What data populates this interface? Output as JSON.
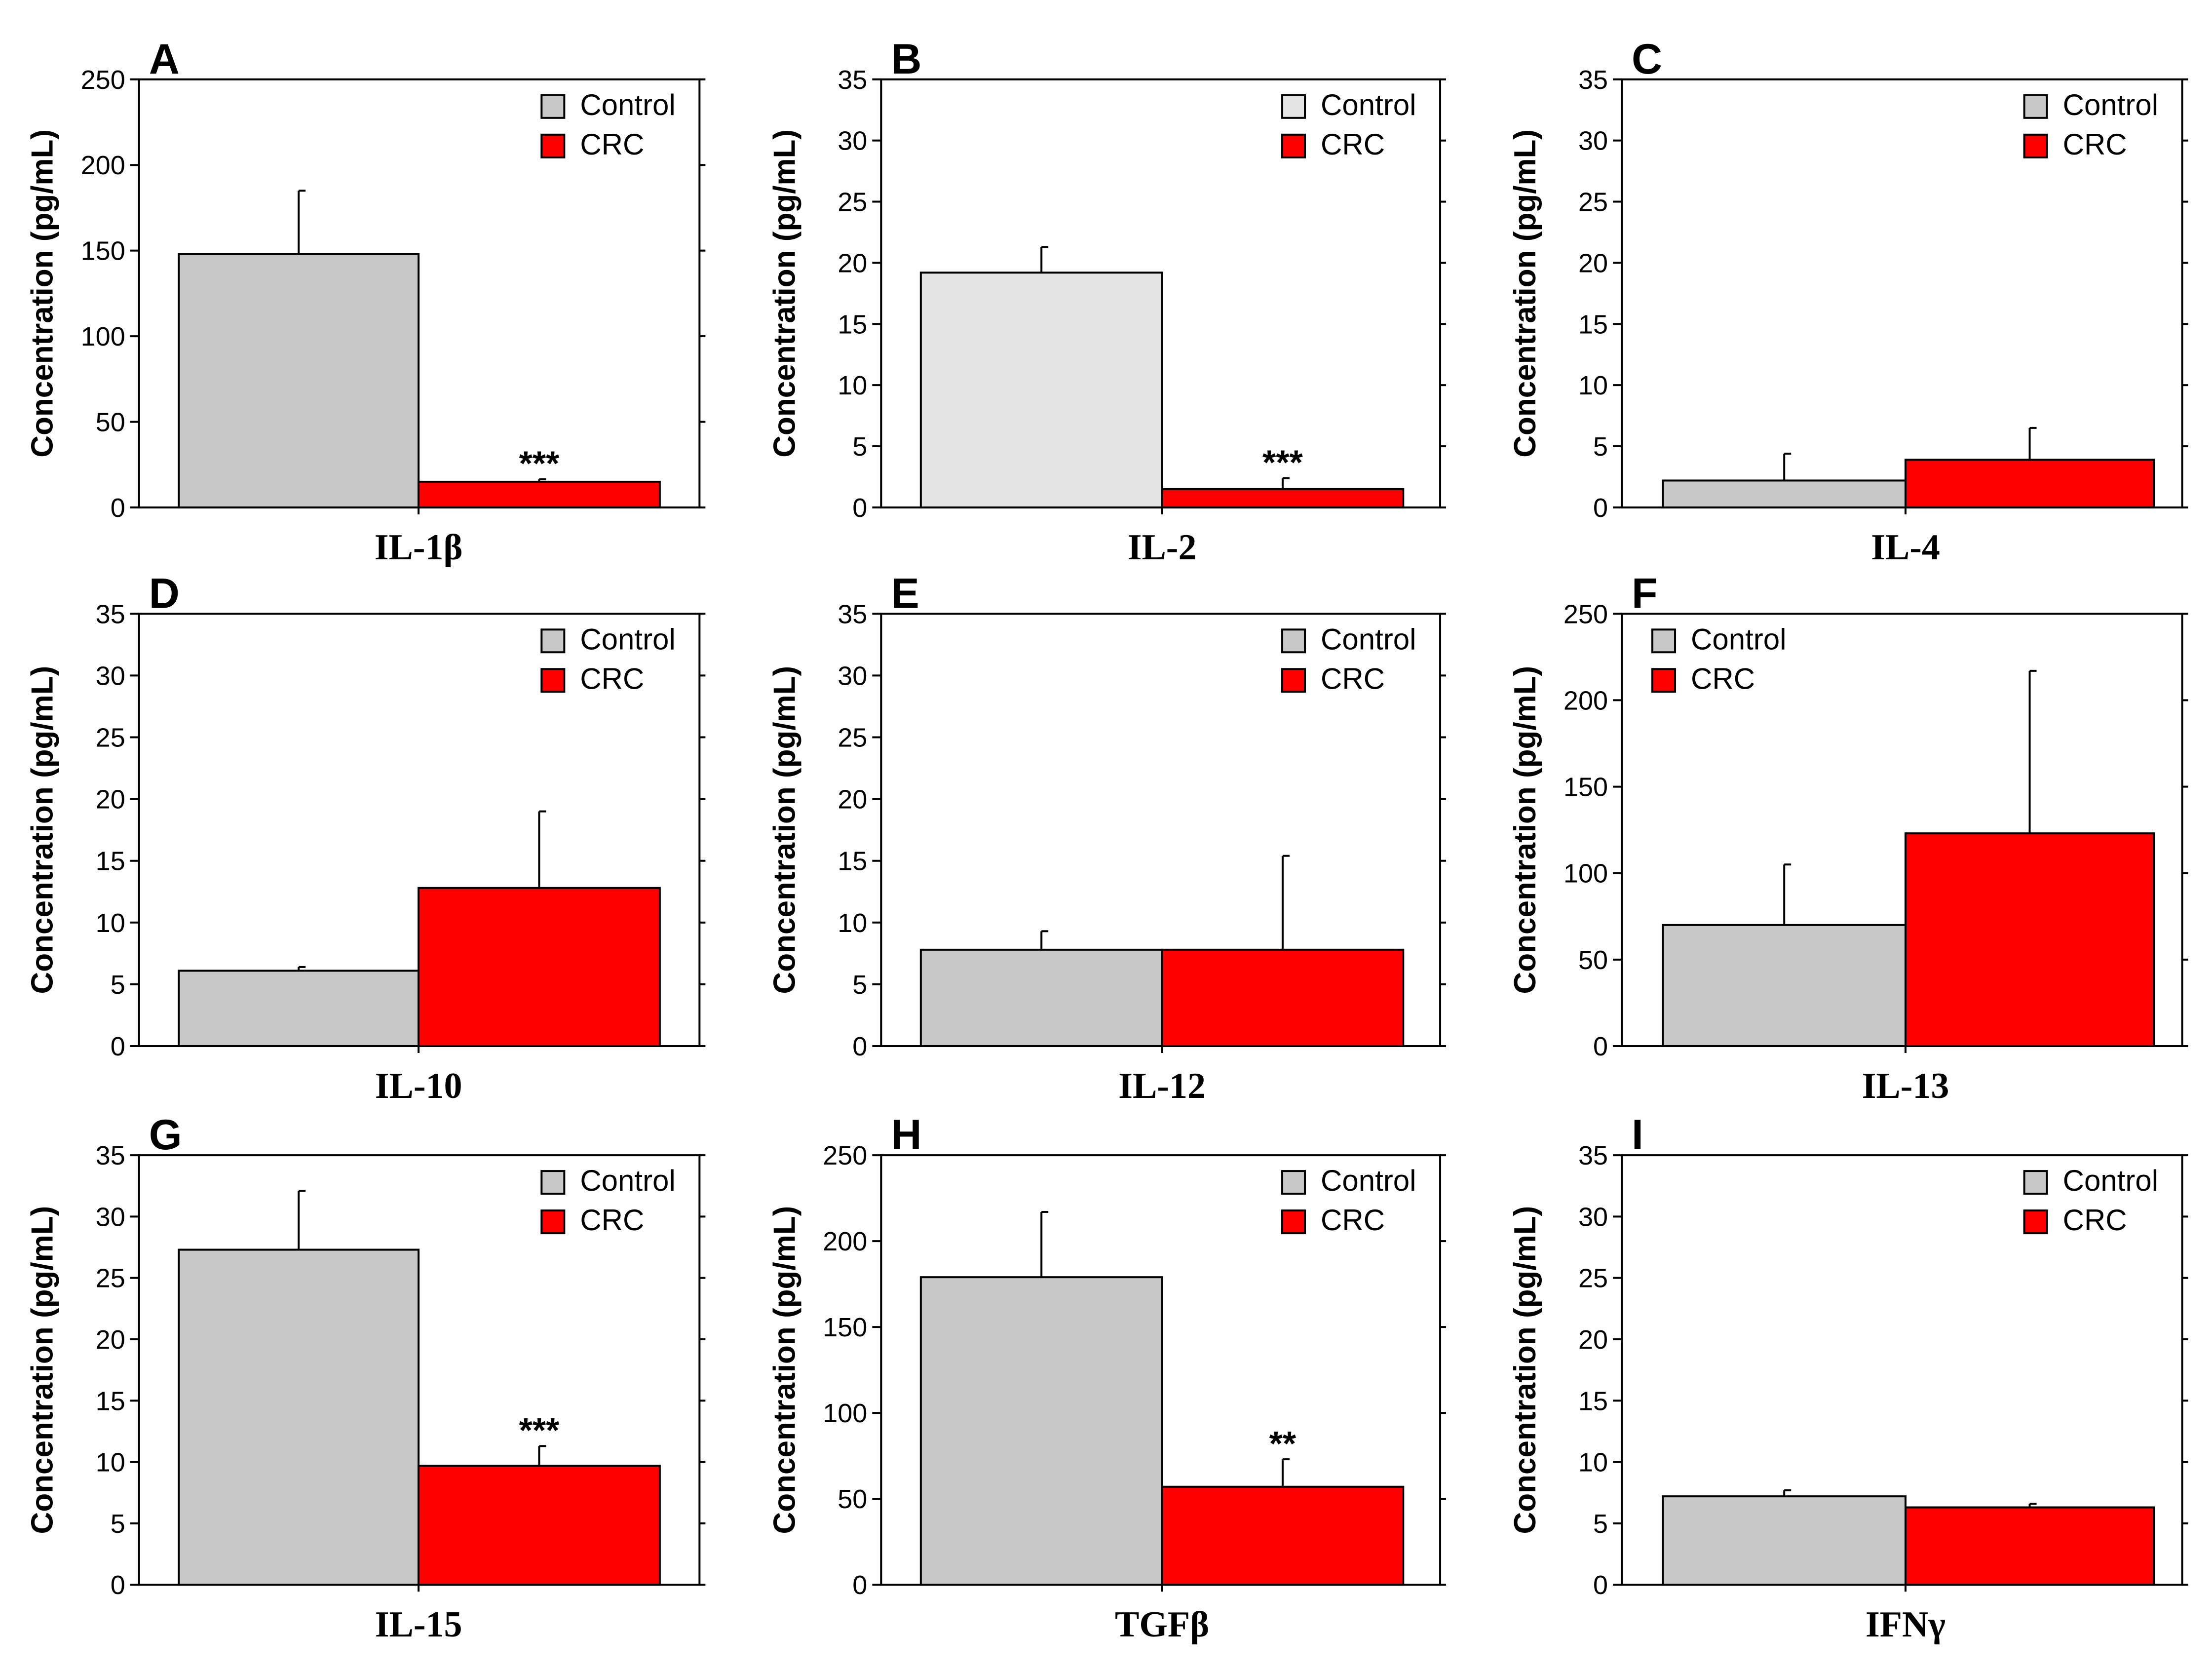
{
  "legend": {
    "control_label": "Control",
    "crc_label": "CRC"
  },
  "colors": {
    "control": "#c8c8c8",
    "control_light": "#e4e4e4",
    "crc": "#ff0000"
  },
  "chart_data": [
    {
      "panel": "A",
      "type": "bar",
      "xlabel": "IL-1β",
      "ylabel": "Concentration (pg/mL)",
      "ylim": [
        0,
        250
      ],
      "yticks": [
        0,
        50,
        100,
        150,
        200,
        250
      ],
      "legend_position": "top-right",
      "series": [
        {
          "name": "Control",
          "value": 148,
          "error": 37
        },
        {
          "name": "CRC",
          "value": 15,
          "error": 1.5
        }
      ],
      "significance": "***"
    },
    {
      "panel": "B",
      "type": "bar",
      "xlabel": "IL-2",
      "ylabel": "Concentration (pg/mL)",
      "ylim": [
        0,
        35
      ],
      "yticks": [
        0,
        5,
        10,
        15,
        20,
        25,
        30,
        35
      ],
      "legend_position": "top-right",
      "series": [
        {
          "name": "Control",
          "value": 19.2,
          "error": 2.1,
          "color": "#e4e4e4"
        },
        {
          "name": "CRC",
          "value": 1.5,
          "error": 0.9
        }
      ],
      "significance": "***"
    },
    {
      "panel": "C",
      "type": "bar",
      "xlabel": "IL-4",
      "ylabel": "Concentration (pg/mL)",
      "ylim": [
        0,
        35
      ],
      "yticks": [
        0,
        5,
        10,
        15,
        20,
        25,
        30,
        35
      ],
      "legend_position": "top-right",
      "series": [
        {
          "name": "Control",
          "value": 2.2,
          "error": 2.2
        },
        {
          "name": "CRC",
          "value": 3.9,
          "error": 2.6
        }
      ],
      "significance": ""
    },
    {
      "panel": "D",
      "type": "bar",
      "xlabel": "IL-10",
      "ylabel": "Concentration (pg/mL)",
      "ylim": [
        0,
        35
      ],
      "yticks": [
        0,
        5,
        10,
        15,
        20,
        25,
        30,
        35
      ],
      "legend_position": "top-right",
      "series": [
        {
          "name": "Control",
          "value": 6.1,
          "error": 0.3
        },
        {
          "name": "CRC",
          "value": 12.8,
          "error": 6.2
        }
      ],
      "significance": ""
    },
    {
      "panel": "E",
      "type": "bar",
      "xlabel": "IL-12",
      "ylabel": "Concentration (pg/mL)",
      "ylim": [
        0,
        35
      ],
      "yticks": [
        0,
        5,
        10,
        15,
        20,
        25,
        30,
        35
      ],
      "legend_position": "top-right",
      "series": [
        {
          "name": "Control",
          "value": 7.8,
          "error": 1.5
        },
        {
          "name": "CRC",
          "value": 7.8,
          "error": 7.6
        }
      ],
      "significance": ""
    },
    {
      "panel": "F",
      "type": "bar",
      "xlabel": "IL-13",
      "ylabel": "Concentration (pg/mL)",
      "ylim": [
        0,
        250
      ],
      "yticks": [
        0,
        50,
        100,
        150,
        200,
        250
      ],
      "legend_position": "top-left",
      "series": [
        {
          "name": "Control",
          "value": 70,
          "error": 35
        },
        {
          "name": "CRC",
          "value": 123,
          "error": 94
        }
      ],
      "significance": ""
    },
    {
      "panel": "G",
      "type": "bar",
      "xlabel": "IL-15",
      "ylabel": "Concentration (pg/mL)",
      "ylim": [
        0,
        35
      ],
      "yticks": [
        0,
        5,
        10,
        15,
        20,
        25,
        30,
        35
      ],
      "legend_position": "top-right",
      "series": [
        {
          "name": "Control",
          "value": 27.3,
          "error": 4.8
        },
        {
          "name": "CRC",
          "value": 9.7,
          "error": 1.6
        }
      ],
      "significance": "***"
    },
    {
      "panel": "H",
      "type": "bar",
      "xlabel": "TGFβ",
      "ylabel": "Concentration (pg/mL)",
      "ylim": [
        0,
        250
      ],
      "yticks": [
        0,
        50,
        100,
        150,
        200,
        250
      ],
      "legend_position": "top-right",
      "series": [
        {
          "name": "Control",
          "value": 179,
          "error": 38
        },
        {
          "name": "CRC",
          "value": 57,
          "error": 16
        }
      ],
      "significance": "**"
    },
    {
      "panel": "I",
      "type": "bar",
      "xlabel": "IFNγ",
      "ylabel": "Concentration (pg/mL)",
      "ylim": [
        0,
        35
      ],
      "yticks": [
        0,
        5,
        10,
        15,
        20,
        25,
        30,
        35
      ],
      "legend_position": "top-right",
      "series": [
        {
          "name": "Control",
          "value": 7.2,
          "error": 0.5
        },
        {
          "name": "CRC",
          "value": 6.3,
          "error": 0.3
        }
      ],
      "significance": ""
    }
  ]
}
